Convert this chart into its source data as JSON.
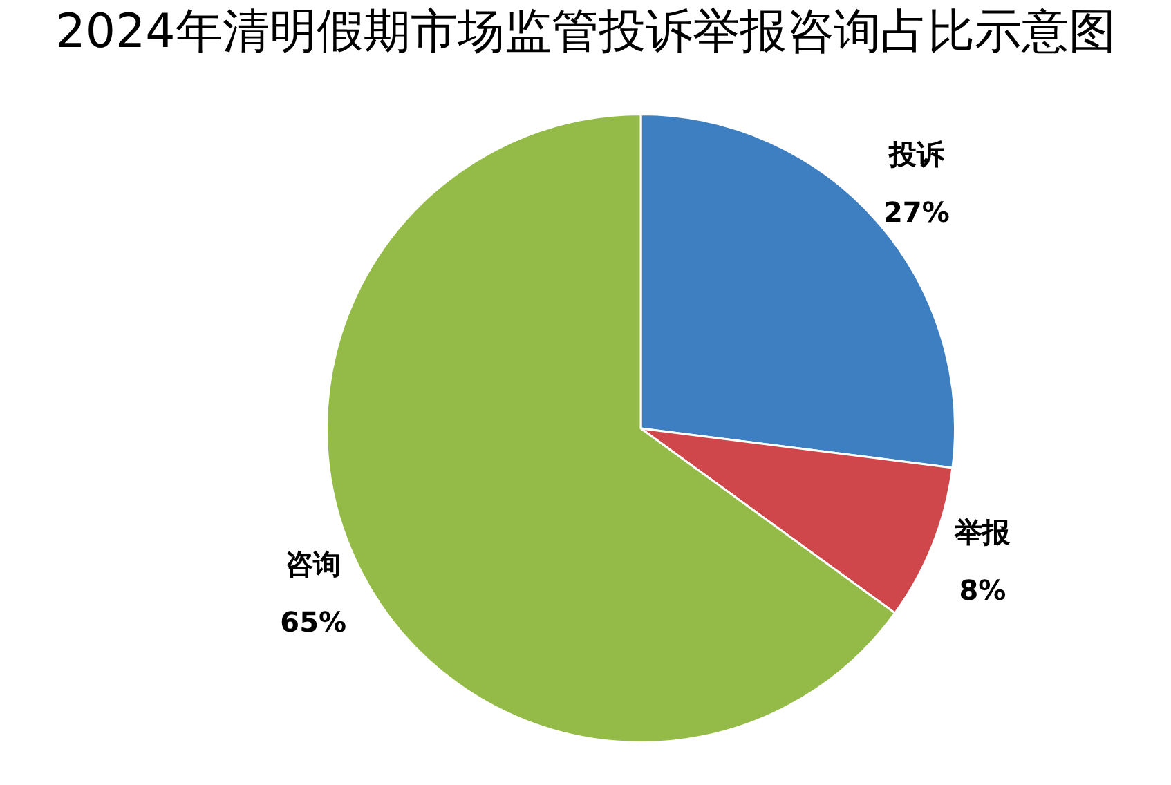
{
  "chart_data": {
    "type": "pie",
    "title": "2024年清明假期市场监管投诉举报咨询占比示意图",
    "categories": [
      "投诉",
      "举报",
      "咨询"
    ],
    "values": [
      27,
      8,
      65
    ],
    "value_labels": [
      "27%",
      "8%",
      "65%"
    ],
    "colors": [
      "#3d7fc1",
      "#cf464b",
      "#94bb48"
    ],
    "legend": false
  }
}
